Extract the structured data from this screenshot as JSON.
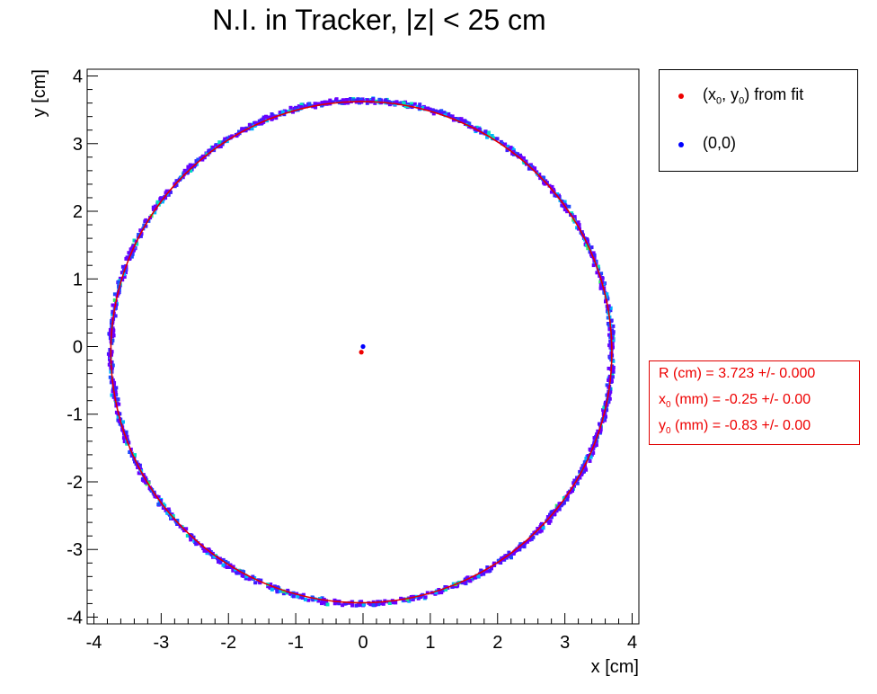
{
  "chart_data": {
    "type": "scatter",
    "title": "N.I. in Tracker, |z| < 25 cm",
    "xlabel": "x [cm]",
    "ylabel": "y [cm]",
    "xlim": [
      -4.1,
      4.1
    ],
    "ylim": [
      -4.1,
      4.1
    ],
    "x_ticks": [
      -4,
      -3,
      -2,
      -1,
      0,
      1,
      2,
      3,
      4
    ],
    "y_ticks": [
      -4,
      -3,
      -2,
      -1,
      0,
      1,
      2,
      3,
      4
    ],
    "grid": false,
    "fit_circle": {
      "center_x_cm": -0.025,
      "center_y_cm": -0.083,
      "radius_cm": 3.723,
      "color": "#e00000"
    },
    "points": [
      {
        "name": "(x0, y0) from fit",
        "x": -0.025,
        "y": -0.083,
        "color": "#ee0000"
      },
      {
        "name": "(0,0)",
        "x": 0.0,
        "y": 0.0,
        "color": "#0000ff"
      }
    ],
    "histogram_colors": [
      "#6a00ff",
      "#3f1cff",
      "#1e4bff",
      "#00b4ff",
      "#00e0c0",
      "#2fe86a"
    ],
    "legend": {
      "position": "top-right",
      "fit_label": "from fit",
      "origin_label": "(0,0)"
    },
    "fit_stats": {
      "position": "right",
      "color": "#ee0000",
      "r_label": "R (cm)  = 3.723 +/- 0.000",
      "x0_prefix": "x",
      "x0_sub": "0",
      "x0_rest": " (mm)  = -0.25 +/- 0.00",
      "y0_prefix": "y",
      "y0_sub": "0",
      "y0_rest": " (mm)  = -0.83 +/- 0.00"
    }
  }
}
